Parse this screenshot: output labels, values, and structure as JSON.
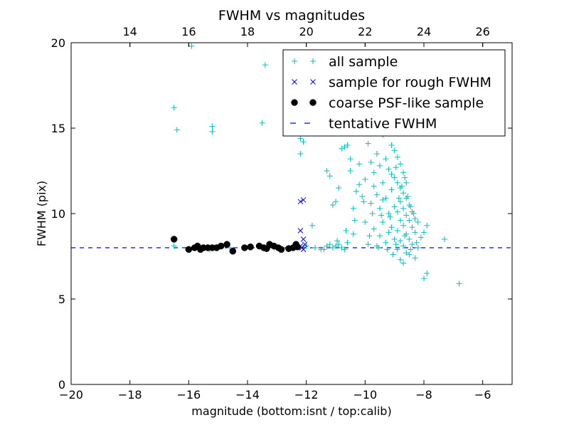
{
  "chart_data": {
    "type": "scatter",
    "title": "FWHM vs magnitudes",
    "xlabel": "magnitude (bottom:isnt / top:calib)",
    "ylabel": "FWHM (pix)",
    "xlim": [
      -20,
      -5
    ],
    "ylim": [
      0,
      20
    ],
    "x_ticks": [
      -20,
      -18,
      -16,
      -14,
      -12,
      -10,
      -8,
      -6
    ],
    "x_tick_labels": [
      "−20",
      "−18",
      "−16",
      "−14",
      "−12",
      "−10",
      "−8",
      "−6"
    ],
    "y_ticks": [
      0,
      5,
      10,
      15,
      20
    ],
    "y_tick_labels": [
      "0",
      "5",
      "10",
      "15",
      "20"
    ],
    "top_axis": {
      "offset": 32,
      "ticks": [
        14,
        16,
        18,
        20,
        22,
        24,
        26
      ],
      "tick_labels": [
        "14",
        "16",
        "18",
        "20",
        "22",
        "24",
        "26"
      ]
    },
    "grid": false,
    "legend": {
      "position": "top-right",
      "entries": [
        "all sample",
        "sample for rough FWHM",
        "coarse PSF-like sample",
        "tentative FWHM"
      ]
    },
    "colors": {
      "all": "#00bfbf",
      "rough": "#0000ff",
      "coarse": "#000000",
      "tentative": "#0000ff"
    },
    "tentative_fwhm": 8.0,
    "series": [
      {
        "name": "all sample",
        "marker": "plus",
        "points": [
          [
            -16.5,
            16.2
          ],
          [
            -16.4,
            14.9
          ],
          [
            -15.9,
            19.8
          ],
          [
            -15.2,
            15.1
          ],
          [
            -15.2,
            14.8
          ],
          [
            -13.5,
            15.3
          ],
          [
            -13.4,
            18.7
          ],
          [
            -16.5,
            8.1
          ],
          [
            -15.7,
            8.0
          ],
          [
            -15.3,
            7.9
          ],
          [
            -14.6,
            8.0
          ],
          [
            -13.9,
            8.0
          ],
          [
            -13.1,
            8.0
          ],
          [
            -12.6,
            8.0
          ],
          [
            -12.3,
            8.1
          ],
          [
            -12.2,
            14.4
          ],
          [
            -12.1,
            14.2
          ],
          [
            -12.2,
            13.5
          ],
          [
            -12.0,
            8.1
          ],
          [
            -11.8,
            9.3
          ],
          [
            -11.7,
            8.0
          ],
          [
            -11.5,
            7.9
          ],
          [
            -11.4,
            7.9
          ],
          [
            -11.3,
            8.1
          ],
          [
            -11.2,
            8.2
          ],
          [
            -11.1,
            8.0
          ],
          [
            -11.0,
            8.1
          ],
          [
            -10.9,
            8.2
          ],
          [
            -10.8,
            8.0
          ],
          [
            -10.7,
            7.9
          ],
          [
            -10.6,
            8.3
          ],
          [
            -11.3,
            12.5
          ],
          [
            -11.2,
            12.2
          ],
          [
            -11.1,
            10.5
          ],
          [
            -11.0,
            10.7
          ],
          [
            -10.9,
            11.5
          ],
          [
            -10.8,
            13.8
          ],
          [
            -10.7,
            13.9
          ],
          [
            -10.6,
            14.0
          ],
          [
            -10.5,
            13.2
          ],
          [
            -10.4,
            10.3
          ],
          [
            -10.4,
            8.8
          ],
          [
            -10.3,
            11.3
          ],
          [
            -10.2,
            11.7
          ],
          [
            -10.1,
            11.0
          ],
          [
            -10.0,
            12.0
          ],
          [
            -10.0,
            9.5
          ],
          [
            -9.9,
            14.1
          ],
          [
            -9.9,
            8.2
          ],
          [
            -9.8,
            13.0
          ],
          [
            -9.8,
            10.6
          ],
          [
            -9.7,
            12.4
          ],
          [
            -9.7,
            9.1
          ],
          [
            -9.6,
            13.5
          ],
          [
            -9.6,
            11.1
          ],
          [
            -9.6,
            8.1
          ],
          [
            -9.5,
            12.8
          ],
          [
            -9.5,
            10.3
          ],
          [
            -9.5,
            8.7
          ],
          [
            -9.4,
            14.6
          ],
          [
            -9.4,
            11.8
          ],
          [
            -9.4,
            9.5
          ],
          [
            -9.3,
            13.2
          ],
          [
            -9.3,
            10.9
          ],
          [
            -9.3,
            8.3
          ],
          [
            -9.2,
            12.6
          ],
          [
            -9.2,
            10.0
          ],
          [
            -9.2,
            8.9
          ],
          [
            -9.1,
            14.0
          ],
          [
            -9.1,
            11.4
          ],
          [
            -9.1,
            9.2
          ],
          [
            -9.0,
            13.7
          ],
          [
            -9.0,
            12.1
          ],
          [
            -9.0,
            10.4
          ],
          [
            -9.0,
            8.5
          ],
          [
            -8.9,
            13.3
          ],
          [
            -8.9,
            11.8
          ],
          [
            -8.9,
            10.1
          ],
          [
            -8.9,
            9.0
          ],
          [
            -8.9,
            7.9
          ],
          [
            -8.8,
            12.9
          ],
          [
            -8.8,
            11.5
          ],
          [
            -8.8,
            10.7
          ],
          [
            -8.8,
            9.6
          ],
          [
            -8.8,
            8.4
          ],
          [
            -8.7,
            12.4
          ],
          [
            -8.7,
            11.2
          ],
          [
            -8.7,
            10.3
          ],
          [
            -8.7,
            9.3
          ],
          [
            -8.7,
            8.1
          ],
          [
            -8.7,
            7.1
          ],
          [
            -8.6,
            11.8
          ],
          [
            -8.6,
            10.9
          ],
          [
            -8.6,
            9.9
          ],
          [
            -8.6,
            8.8
          ],
          [
            -8.6,
            7.7
          ],
          [
            -8.5,
            10.5
          ],
          [
            -8.5,
            9.6
          ],
          [
            -8.5,
            8.5
          ],
          [
            -8.5,
            7.6
          ],
          [
            -8.4,
            10.1
          ],
          [
            -8.4,
            9.2
          ],
          [
            -8.4,
            8.2
          ],
          [
            -8.3,
            9.7
          ],
          [
            -8.3,
            8.9
          ],
          [
            -8.3,
            7.4
          ],
          [
            -8.2,
            9.5
          ],
          [
            -8.2,
            8.0
          ],
          [
            -8.1,
            8.6
          ],
          [
            -8.0,
            6.2
          ],
          [
            -8.0,
            8.9
          ],
          [
            -7.9,
            9.3
          ],
          [
            -7.9,
            6.5
          ],
          [
            -7.3,
            8.5
          ],
          [
            -6.8,
            5.9
          ],
          [
            -10.5,
            12.5
          ],
          [
            -10.2,
            12.9
          ],
          [
            -9.7,
            11.6
          ],
          [
            -9.4,
            10.8
          ],
          [
            -9.1,
            12.3
          ],
          [
            -8.95,
            12.7
          ],
          [
            -8.85,
            10.9
          ],
          [
            -8.75,
            11.6
          ],
          [
            -8.65,
            12.1
          ],
          [
            -8.55,
            11.0
          ],
          [
            -8.45,
            10.4
          ],
          [
            -8.35,
            10.0
          ],
          [
            -9.15,
            9.8
          ],
          [
            -9.45,
            9.9
          ],
          [
            -9.75,
            10.0
          ],
          [
            -10.05,
            10.7
          ],
          [
            -10.35,
            9.6
          ],
          [
            -10.65,
            9.0
          ],
          [
            -10.95,
            8.4
          ],
          [
            -9.85,
            8.7
          ],
          [
            -9.55,
            8.0
          ],
          [
            -9.25,
            7.9
          ],
          [
            -8.95,
            8.2
          ],
          [
            -8.65,
            8.7
          ],
          [
            -8.45,
            7.9
          ],
          [
            -8.25,
            8.3
          ],
          [
            -9.05,
            7.6
          ],
          [
            -8.8,
            7.3
          ]
        ]
      },
      {
        "name": "sample for rough FWHM",
        "marker": "x",
        "points": [
          [
            -12.1,
            10.8
          ],
          [
            -12.2,
            10.7
          ],
          [
            -12.2,
            9.0
          ],
          [
            -12.1,
            8.5
          ],
          [
            -12.2,
            8.1
          ],
          [
            -12.1,
            7.9
          ],
          [
            -12.15,
            8.0
          ],
          [
            -12.05,
            8.2
          ]
        ]
      },
      {
        "name": "coarse PSF-like sample",
        "marker": "dot",
        "points": [
          [
            -16.5,
            8.5
          ],
          [
            -16.0,
            7.9
          ],
          [
            -15.8,
            8.0
          ],
          [
            -15.7,
            8.1
          ],
          [
            -15.6,
            7.9
          ],
          [
            -15.5,
            8.0
          ],
          [
            -15.35,
            8.0
          ],
          [
            -15.2,
            8.0
          ],
          [
            -15.05,
            8.0
          ],
          [
            -14.9,
            8.1
          ],
          [
            -14.7,
            8.2
          ],
          [
            -14.5,
            7.8
          ],
          [
            -14.1,
            8.0
          ],
          [
            -13.9,
            8.05
          ],
          [
            -13.6,
            8.1
          ],
          [
            -13.45,
            8.0
          ],
          [
            -13.35,
            7.95
          ],
          [
            -13.25,
            8.2
          ],
          [
            -13.1,
            8.1
          ],
          [
            -12.95,
            8.0
          ],
          [
            -12.85,
            7.9
          ],
          [
            -12.6,
            7.95
          ],
          [
            -12.45,
            8.0
          ],
          [
            -12.35,
            8.2
          ],
          [
            -12.3,
            8.05
          ]
        ]
      }
    ]
  }
}
